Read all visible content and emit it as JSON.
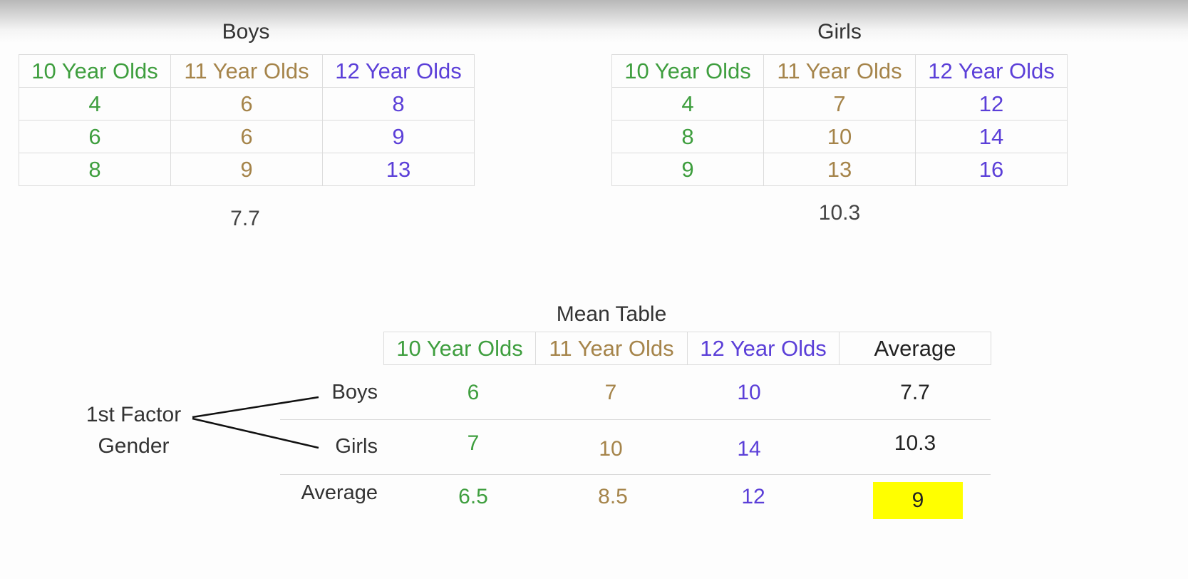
{
  "boys": {
    "title": "Boys",
    "headers": [
      "10 Year Olds",
      "11 Year Olds",
      "12 Year Olds"
    ],
    "rows": [
      [
        "4",
        "6",
        "8"
      ],
      [
        "6",
        "6",
        "9"
      ],
      [
        "8",
        "9",
        "13"
      ]
    ],
    "mean": "7.7"
  },
  "girls": {
    "title": "Girls",
    "headers": [
      "10 Year Olds",
      "11 Year Olds",
      "12 Year Olds"
    ],
    "rows": [
      [
        "4",
        "7",
        "12"
      ],
      [
        "8",
        "10",
        "14"
      ],
      [
        "9",
        "13",
        "16"
      ]
    ],
    "mean": "10.3"
  },
  "mean_table": {
    "title": "Mean Table",
    "headers": [
      "10 Year Olds",
      "11 Year Olds",
      "12 Year Olds",
      "Average"
    ],
    "rows": [
      {
        "label": "Boys",
        "values": [
          "6",
          "7",
          "10",
          "7.7"
        ]
      },
      {
        "label": "Girls",
        "values": [
          "7",
          "10",
          "14",
          "10.3"
        ]
      },
      {
        "label": "Average",
        "values": [
          "6.5",
          "8.5",
          "12",
          "9"
        ]
      }
    ]
  },
  "factor": {
    "line1": "1st Factor",
    "line2": "Gender"
  },
  "colors": {
    "age10": "#3e9e3e",
    "age11": "#a5844a",
    "age12": "#5b3fd8",
    "highlight": "#ffff00"
  }
}
